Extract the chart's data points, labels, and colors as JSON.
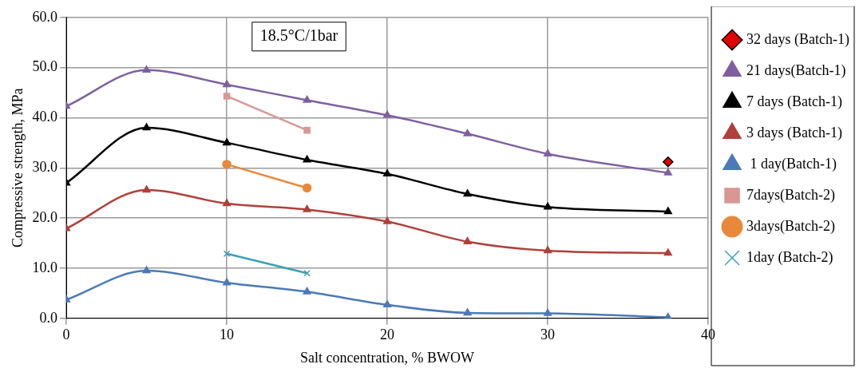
{
  "chart_data": {
    "type": "line",
    "xlabel": "Salt concentration, % BWOW",
    "ylabel": "Compressive strength, MPa",
    "annotations": [
      "18.5°C/1bar"
    ],
    "xlim": [
      0,
      40
    ],
    "xticks": [
      0,
      10,
      20,
      30,
      40
    ],
    "ylim": [
      0,
      60
    ],
    "yticks": [
      {
        "value": 0,
        "label": "0.0"
      },
      {
        "value": 10,
        "label": "10.0"
      },
      {
        "value": 20,
        "label": "20.0"
      },
      {
        "value": 30,
        "label": "30.0"
      },
      {
        "value": 40,
        "label": "40.0"
      },
      {
        "value": 50,
        "label": "50.0"
      },
      {
        "value": 60,
        "label": "60.0"
      }
    ],
    "grid": true,
    "legend": "right",
    "series": [
      {
        "name": "32 days (Batch-1)",
        "color": "#000000",
        "marker": "diamond",
        "x": [
          37.5
        ],
        "values": [
          31.2
        ]
      },
      {
        "name": "21 days(Batch-1)",
        "color": "#7f5fa0",
        "marker": "triangle",
        "x": [
          0,
          5,
          10,
          15,
          20,
          25,
          30,
          37.5
        ],
        "values": [
          42.3,
          49.5,
          46.6,
          43.5,
          40.5,
          36.8,
          32.8,
          29.0
        ]
      },
      {
        "name": "7 days (Batch-1)",
        "color": "#000000",
        "marker": "triangle",
        "x": [
          0,
          5,
          10,
          15,
          20,
          25,
          30,
          37.5
        ],
        "values": [
          27.0,
          38.0,
          35.0,
          31.6,
          28.8,
          24.8,
          22.2,
          21.3
        ]
      },
      {
        "name": "3 days (Batch-1)",
        "color": "#b0403a",
        "marker": "triangle",
        "x": [
          0,
          5,
          10,
          15,
          20,
          25,
          30,
          37.5
        ],
        "values": [
          17.9,
          25.6,
          22.9,
          21.7,
          19.3,
          15.3,
          13.5,
          13.0
        ]
      },
      {
        "name": " 1 day(Batch-1)",
        "color": "#4a7ab8",
        "marker": "triangle",
        "x": [
          0,
          5,
          10,
          15,
          20,
          25,
          30,
          37.5
        ],
        "values": [
          3.7,
          9.5,
          7.1,
          5.3,
          2.7,
          1.1,
          1.0,
          0.2
        ]
      },
      {
        "name": "7days(Batch-2)",
        "color": "#d99694",
        "marker": "square",
        "x": [
          10,
          15
        ],
        "values": [
          44.3,
          37.5
        ]
      },
      {
        "name": "3days(Batch-2)",
        "color": "#e8883a",
        "marker": "circle",
        "x": [
          10,
          15
        ],
        "values": [
          30.7,
          26.0
        ]
      },
      {
        "name": "1day (Batch-2)",
        "color": "#3aa0b8",
        "marker": "cross",
        "x": [
          10,
          15
        ],
        "values": [
          12.9,
          9.0
        ]
      }
    ]
  }
}
